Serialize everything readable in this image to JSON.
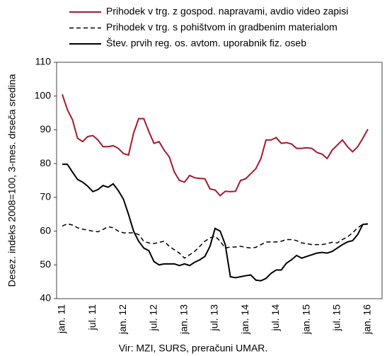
{
  "chart_data": {
    "type": "line",
    "ylabel": "Desez. indeks 2008=100, 3-mes. drseča sredina",
    "source": "Vir: MZI, SURS, preračuni UMAR.",
    "categories": [
      "jan. 11",
      null,
      null,
      null,
      null,
      null,
      "jul. 11",
      null,
      null,
      null,
      null,
      null,
      "jan. 12",
      null,
      null,
      null,
      null,
      null,
      "jul. 12",
      null,
      null,
      null,
      null,
      null,
      "jan. 13",
      null,
      null,
      null,
      null,
      null,
      "jul. 13",
      null,
      null,
      null,
      null,
      null,
      "jan. 14",
      null,
      null,
      null,
      null,
      null,
      "jul. 14",
      null,
      null,
      null,
      null,
      null,
      "jan. 15",
      null,
      null,
      null,
      null,
      null,
      "jul. 15",
      null,
      null,
      null,
      null,
      null,
      "jan. 16"
    ],
    "ylim": [
      40,
      110
    ],
    "yticks": [
      40,
      50,
      60,
      70,
      80,
      90,
      100,
      110
    ],
    "legend": "top",
    "series": [
      {
        "name": "Prihodek v trg. z gospod. napravami, avdio video zapisi",
        "color": "#a6192e",
        "style": "solid",
        "values": [
          100.5,
          96,
          93,
          87.5,
          86.5,
          88,
          88.3,
          87,
          85,
          85,
          85.3,
          84.5,
          83,
          82.5,
          89,
          93.3,
          93.3,
          89.5,
          86,
          86.5,
          84,
          82,
          77.5,
          75,
          74.5,
          76.5,
          75.8,
          75.6,
          75.5,
          72.5,
          72.2,
          70.5,
          71.8,
          71.7,
          71.8,
          75,
          75.5,
          77,
          78.5,
          81.5,
          87,
          87,
          87.7,
          86,
          86.2,
          85.8,
          84.5,
          84.5,
          84.7,
          84.5,
          83.3,
          82.8,
          81.5,
          84,
          85.5,
          87,
          85,
          83.5,
          85,
          87.5,
          90.2
        ]
      },
      {
        "name": "Prihodek v trg. s pohištvom in gradbenim materialom",
        "color": "#000000",
        "style": "dashed",
        "values": [
          61.5,
          62.2,
          61.8,
          61,
          60.6,
          60.3,
          60,
          59.8,
          60.5,
          61.3,
          61,
          60,
          59.5,
          59.5,
          59.5,
          59,
          57,
          56.5,
          56.3,
          56.7,
          57,
          55.5,
          54.5,
          53.5,
          52,
          53,
          54,
          55.5,
          57,
          58,
          58.5,
          57,
          55,
          55.3,
          55.3,
          55.5,
          55.2,
          55,
          55.2,
          56,
          56.8,
          56.8,
          56.8,
          57,
          57.5,
          57.5,
          57.2,
          56.5,
          56.3,
          56,
          56,
          56,
          56.3,
          56.7,
          56.5,
          57.5,
          58.3,
          59.5,
          61,
          62,
          62.2
        ]
      },
      {
        "name": "Štev. prvih reg. os. avtom. uporabnik fiz. oseb",
        "color": "#000000",
        "style": "solid",
        "values": [
          79.8,
          79.8,
          77.5,
          75.3,
          74.5,
          73.3,
          71.7,
          72.3,
          73.5,
          73,
          74,
          72,
          69.5,
          65,
          60,
          57,
          55,
          54.2,
          51,
          50,
          50.3,
          50.3,
          50.3,
          49.8,
          50.3,
          49.8,
          50.8,
          51.5,
          52.5,
          55.5,
          60.8,
          60,
          56,
          46.5,
          46.2,
          46.5,
          46.8,
          47,
          45.5,
          45.3,
          46,
          47.5,
          48.5,
          48.5,
          50.5,
          51.5,
          52.8,
          52,
          52.5,
          53,
          53.5,
          53.7,
          53.5,
          54,
          55,
          56,
          56.8,
          57.2,
          59,
          62,
          62.1
        ]
      }
    ]
  }
}
